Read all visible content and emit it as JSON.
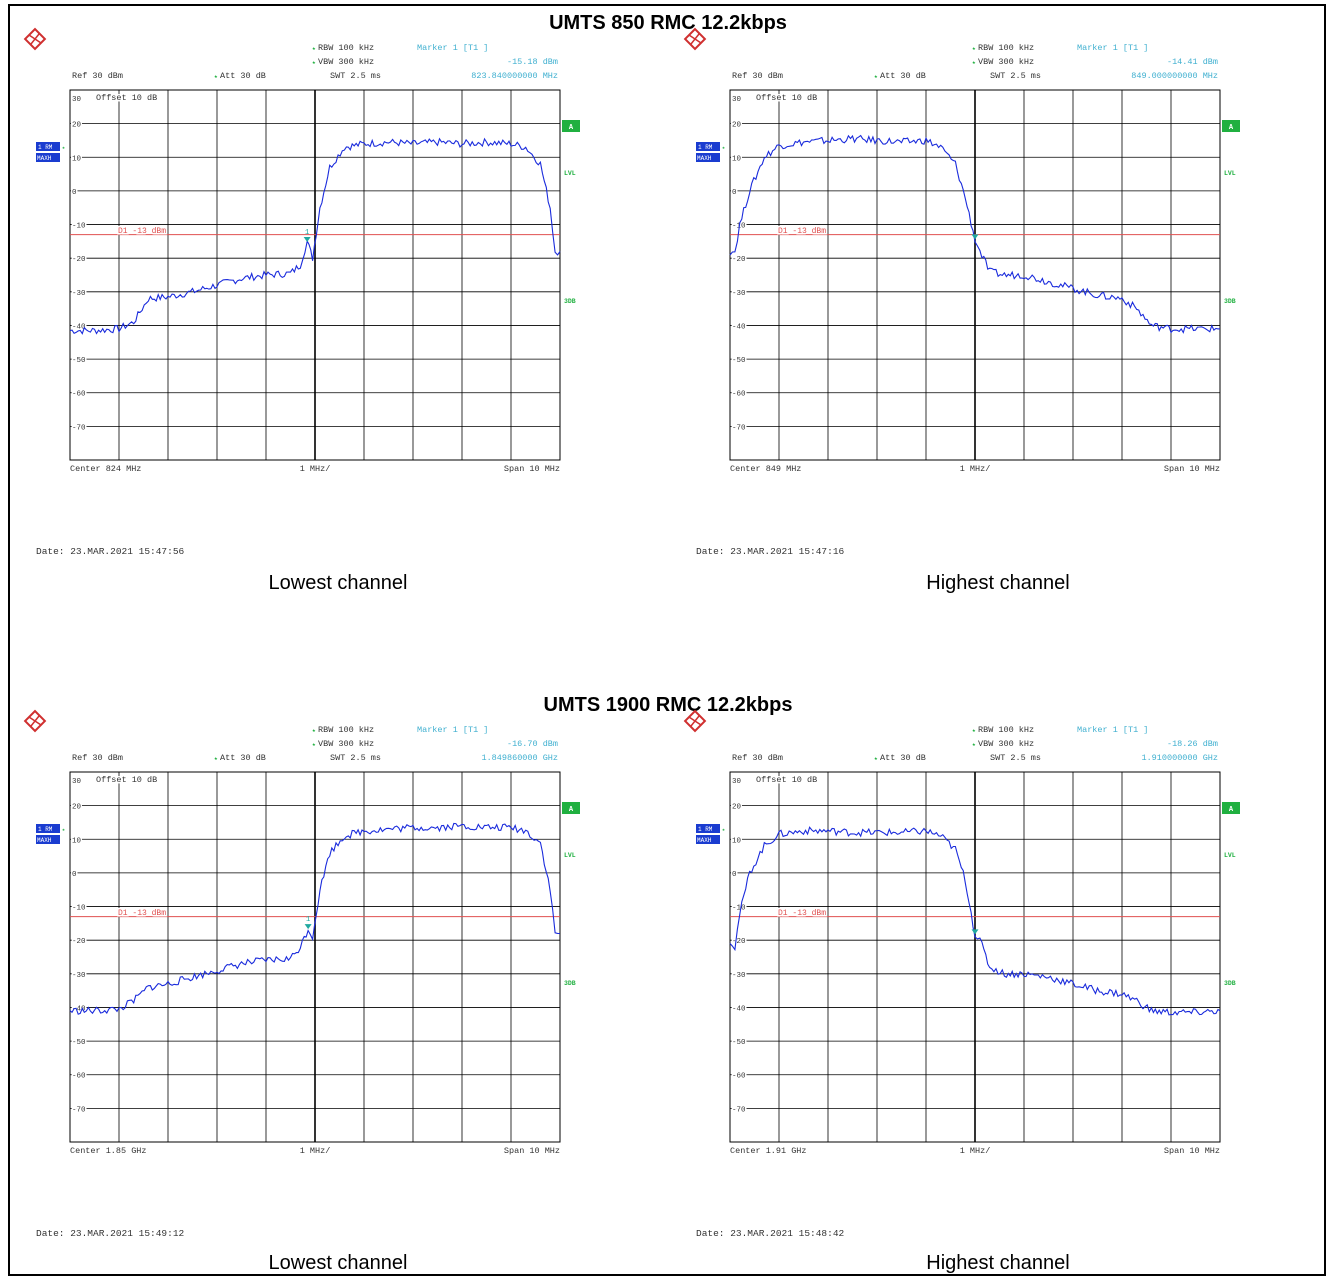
{
  "sections": [
    {
      "title": "UMTS 850 RMC 12.2kbps"
    },
    {
      "title": "UMTS 1900 RMC 12.2kbps"
    }
  ],
  "colors": {
    "trace": "#1a2bdc",
    "limit": "#e05050",
    "grid": "#000000",
    "settings_text": "#333333",
    "marker_text": "#40b0d0",
    "green_label": "#20b040",
    "side_box": "#1a3cd0"
  },
  "chart_data": [
    {
      "type": "line",
      "caption": "Lowest channel",
      "header": {
        "rbw": "RBW 100 kHz",
        "vbw": "VBW 300 kHz",
        "swt": "SWT 2.5 ms",
        "ref": "Ref  30 dBm",
        "att": "Att  30 dB",
        "marker_title": "Marker 1 [T1 ]",
        "marker_level": "-15.18 dBm",
        "marker_freq": "823.840000000 MHz"
      },
      "offset_label": "Offset  10 dB",
      "limit_label": "D1 -13 dBm",
      "limit_value": -13,
      "marker_label": "1",
      "side_labels": {
        "trace_box1": "1 RM",
        "trace_box2": "MAXH",
        "a": "A",
        "lvl": "LVL",
        "db": "3DB"
      },
      "footer": {
        "center": "Center 824 MHz",
        "div": "1 MHz/",
        "span": "Span 10 MHz"
      },
      "date": "Date: 23.MAR.2021  15:47:56",
      "y_ticks": [
        "30",
        "20",
        "10",
        "0",
        "-10",
        "-20",
        "-30",
        "-40",
        "-50",
        "-60",
        "-70"
      ],
      "xlim": [
        819,
        829
      ],
      "ylim": [
        -80,
        30
      ],
      "marker": {
        "x": 823.84,
        "y": -15.18
      },
      "x": [
        819,
        819.5,
        820,
        820.3,
        820.6,
        821,
        821.5,
        822,
        822.5,
        823,
        823.5,
        823.7,
        823.84,
        823.95,
        824.1,
        824.3,
        824.6,
        825,
        825.5,
        826,
        826.5,
        827,
        827.5,
        828,
        828.3,
        828.6,
        828.8,
        828.9,
        829
      ],
      "y": [
        -41.5,
        -41.5,
        -41,
        -39,
        -32,
        -31.5,
        -30,
        -28,
        -26,
        -25,
        -24.5,
        -22,
        -15,
        -20,
        -5,
        7,
        13,
        14,
        14.5,
        14,
        14.5,
        14,
        14.5,
        14,
        13,
        8,
        -5,
        -18,
        -18
      ]
    },
    {
      "type": "line",
      "caption": "Highest channel",
      "header": {
        "rbw": "RBW 100 kHz",
        "vbw": "VBW 300 kHz",
        "swt": "SWT 2.5 ms",
        "ref": "Ref  30 dBm",
        "att": "Att  30 dB",
        "marker_title": "Marker 1 [T1 ]",
        "marker_level": "-14.41 dBm",
        "marker_freq": "849.000000000 MHz"
      },
      "offset_label": "Offset  10 dB",
      "limit_label": "D1 -13 dBm",
      "limit_value": -13,
      "marker_label": "",
      "side_labels": {
        "trace_box1": "1 RM",
        "trace_box2": "MAXH",
        "a": "A",
        "lvl": "LVL",
        "db": "3DB"
      },
      "footer": {
        "center": "Center 849 MHz",
        "div": "1 MHz/",
        "span": "Span 10 MHz"
      },
      "date": "Date: 23.MAR.2021  15:47:16",
      "y_ticks": [
        "30",
        "20",
        "10",
        "0",
        "-10",
        "-20",
        "-30",
        "-40",
        "-50",
        "-60",
        "-70"
      ],
      "xlim": [
        844,
        854
      ],
      "ylim": [
        -80,
        30
      ],
      "marker": {
        "x": 849.0,
        "y": -14.41
      },
      "x": [
        844,
        844.1,
        844.2,
        844.4,
        844.7,
        845,
        845.5,
        846,
        846.5,
        847,
        847.5,
        848,
        848.3,
        848.6,
        848.8,
        849,
        849.1,
        849.3,
        849.6,
        850,
        850.5,
        851,
        851.5,
        852,
        852.3,
        852.6,
        853,
        853.5,
        854
      ],
      "y": [
        -18,
        -18,
        -10,
        0,
        10,
        13.5,
        14.5,
        15,
        15.5,
        15,
        14.5,
        15,
        13,
        8,
        -2,
        -14.4,
        -18,
        -24,
        -25,
        -25,
        -27,
        -29,
        -31,
        -32,
        -35,
        -40,
        -41,
        -41,
        -41
      ]
    },
    {
      "type": "line",
      "caption": "Lowest channel",
      "header": {
        "rbw": "RBW 100 kHz",
        "vbw": "VBW 300 kHz",
        "swt": "SWT 2.5 ms",
        "ref": "Ref  30 dBm",
        "att": "Att  30 dB",
        "marker_title": "Marker 1 [T1 ]",
        "marker_level": "-16.70 dBm",
        "marker_freq": "1.849860000 GHz"
      },
      "offset_label": "Offset  10 dB",
      "limit_label": "D1 -13 dBm",
      "limit_value": -13,
      "marker_label": "1",
      "side_labels": {
        "trace_box1": "1 RM",
        "trace_box2": "MAXH",
        "a": "A",
        "lvl": "LVL",
        "db": "3DB"
      },
      "footer": {
        "center": "Center 1.85 GHz",
        "div": "1 MHz/",
        "span": "Span 10 MHz"
      },
      "date": "Date: 23.MAR.2021  15:49:12",
      "y_ticks": [
        "30",
        "20",
        "10",
        "0",
        "-10",
        "-20",
        "-30",
        "-40",
        "-50",
        "-60",
        "-70"
      ],
      "xlim": [
        1845,
        1855
      ],
      "ylim": [
        -80,
        30
      ],
      "marker": {
        "x": 1849.86,
        "y": -16.7
      },
      "x": [
        1845,
        1845.5,
        1846,
        1846.3,
        1846.6,
        1847,
        1847.5,
        1848,
        1848.5,
        1849,
        1849.5,
        1849.7,
        1849.86,
        1849.95,
        1850.1,
        1850.3,
        1850.6,
        1851,
        1851.5,
        1852,
        1852.5,
        1853,
        1853.5,
        1854,
        1854.3,
        1854.6,
        1854.8,
        1854.9,
        1855
      ],
      "y": [
        -41,
        -41,
        -40.5,
        -38,
        -34,
        -33,
        -31,
        -29,
        -27,
        -26,
        -25.5,
        -22,
        -16.7,
        -19,
        -5,
        6,
        11,
        12.5,
        13,
        13.5,
        13.5,
        14,
        13.5,
        13.5,
        12.5,
        9,
        -5,
        -18,
        -18
      ]
    },
    {
      "type": "line",
      "caption": "Highest channel",
      "header": {
        "rbw": "RBW 100 kHz",
        "vbw": "VBW 300 kHz",
        "swt": "SWT 2.5 ms",
        "ref": "Ref  30 dBm",
        "att": "Att  30 dB",
        "marker_title": "Marker 1 [T1 ]",
        "marker_level": "-18.26 dBm",
        "marker_freq": "1.910000000 GHz"
      },
      "offset_label": "Offset  10 dB",
      "limit_label": "D1 -13 dBm",
      "limit_value": -13,
      "marker_label": "",
      "side_labels": {
        "trace_box1": "1 RM",
        "trace_box2": "MAXH",
        "a": "A",
        "lvl": "LVL",
        "db": "3DB"
      },
      "footer": {
        "center": "Center 1.91 GHz",
        "div": "1 MHz/",
        "span": "Span 10 MHz"
      },
      "date": "Date: 23.MAR.2021  15:48:42",
      "y_ticks": [
        "30",
        "20",
        "10",
        "0",
        "-10",
        "-20",
        "-30",
        "-40",
        "-50",
        "-60",
        "-70"
      ],
      "xlim": [
        1905,
        1915
      ],
      "ylim": [
        -80,
        30
      ],
      "marker": {
        "x": 1910.0,
        "y": -18.26
      },
      "x": [
        1905,
        1905.1,
        1905.2,
        1905.4,
        1905.7,
        1906,
        1906.5,
        1907,
        1907.5,
        1908,
        1908.5,
        1909,
        1909.3,
        1909.6,
        1909.8,
        1910,
        1910.1,
        1910.3,
        1910.6,
        1911,
        1911.5,
        1912,
        1912.5,
        1913,
        1913.3,
        1913.6,
        1914,
        1914.5,
        1915
      ],
      "y": [
        -20,
        -22,
        -12,
        0,
        8,
        11.5,
        12.5,
        12.5,
        12,
        12,
        12,
        12.5,
        11,
        7,
        -2,
        -18.3,
        -20,
        -28,
        -30,
        -30,
        -31,
        -33,
        -35,
        -36,
        -38,
        -41,
        -41.5,
        -41.5,
        -41
      ]
    }
  ]
}
